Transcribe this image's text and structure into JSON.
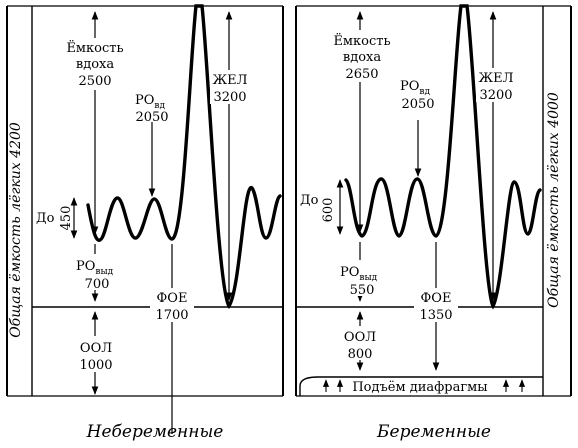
{
  "left_panel": {
    "side_label": "Общая ёмкость лёгких 4200",
    "inspiratory_capacity_label_1": "Ёмкость",
    "inspiratory_capacity_label_2": "вдоха",
    "inspiratory_capacity_value": "2500",
    "irv_label": "РО",
    "irv_sub": "вд",
    "irv_value": "2050",
    "vc_label": "ЖЕЛ",
    "vc_value": "3200",
    "tv_label": "До",
    "tv_value": "450",
    "erv_label": "РО",
    "erv_sub": "выд",
    "erv_value": "700",
    "frc_label": "ФОЕ",
    "frc_value": "1700",
    "rv_label": "ООЛ",
    "rv_value": "1000",
    "caption": "Небеременные"
  },
  "right_panel": {
    "side_label": "Общая ёмкость лёгких 4000",
    "inspiratory_capacity_label_1": "Ёмкость",
    "inspiratory_capacity_label_2": "вдоха",
    "inspiratory_capacity_value": "2650",
    "irv_label": "РО",
    "irv_sub": "вд",
    "irv_value": "2050",
    "vc_label": "ЖЕЛ",
    "vc_value": "3200",
    "tv_label": "До",
    "tv_value": "600",
    "erv_label": "РО",
    "erv_sub": "выд",
    "erv_value": "550",
    "frc_label": "ФОЕ",
    "frc_value": "1350",
    "rv_label": "ООЛ",
    "rv_value": "800",
    "diaphragm_label": "Подъём диафрагмы",
    "caption": "Беременные"
  }
}
